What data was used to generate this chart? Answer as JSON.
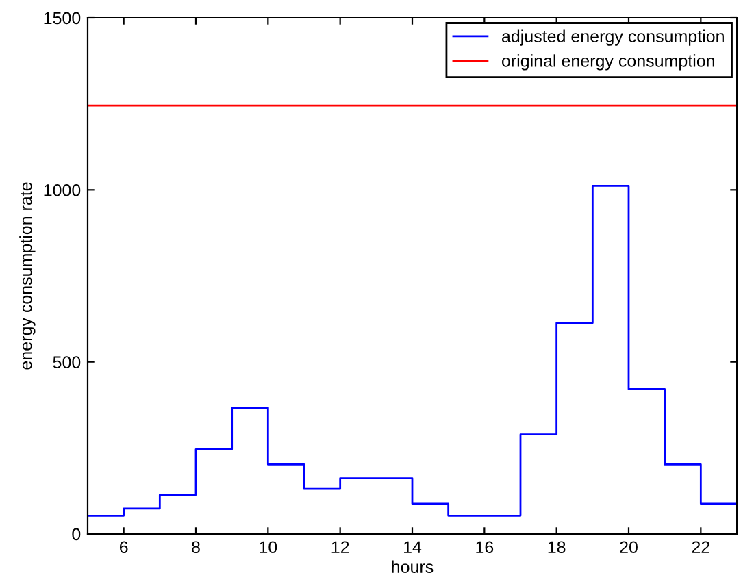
{
  "chart_data": {
    "type": "step",
    "xlabel": "hours",
    "ylabel": "energy consumption rate",
    "xlim": [
      5,
      23
    ],
    "ylim": [
      0,
      1500
    ],
    "xticks": [
      6,
      8,
      10,
      12,
      14,
      16,
      18,
      20,
      22
    ],
    "yticks": [
      0,
      500,
      1000,
      1500
    ],
    "grid": false,
    "legend": "top right",
    "series": [
      {
        "name": "adjusted energy consumption",
        "color": "#0000ff",
        "x": [
          5,
          6,
          7,
          8,
          9,
          10,
          11,
          12,
          13,
          14,
          15,
          16,
          17,
          18,
          19,
          20,
          21,
          22,
          23
        ],
        "values": [
          53,
          74,
          114,
          246,
          367,
          202,
          131,
          162,
          162,
          88,
          53,
          53,
          289,
          613,
          1012,
          421,
          202,
          88,
          88
        ]
      },
      {
        "name": "original energy consumption",
        "color": "#ff0000",
        "type": "line",
        "x": [
          5,
          23
        ],
        "values": [
          1245,
          1245
        ]
      }
    ]
  }
}
